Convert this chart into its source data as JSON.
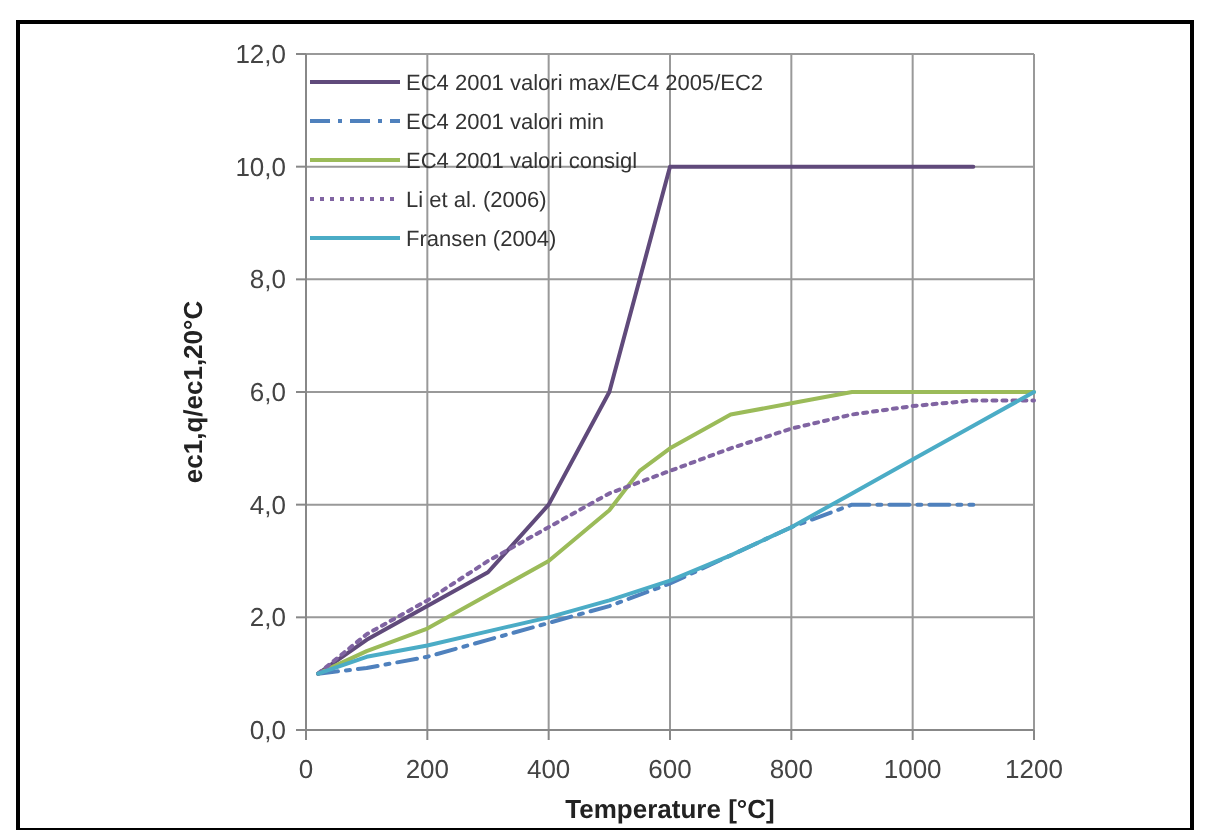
{
  "chart_data": {
    "type": "line",
    "xlabel": "Temperature [°C]",
    "ylabel": "ec1,q/ec1,20°C",
    "xlim": [
      0,
      1200
    ],
    "xticks": [
      0,
      200,
      400,
      600,
      800,
      1000,
      1200
    ],
    "ylim": [
      0,
      12
    ],
    "yticks": [
      {
        "value": 0,
        "label": "0,0"
      },
      {
        "value": 2,
        "label": "2,0"
      },
      {
        "value": 4,
        "label": "4,0"
      },
      {
        "value": 6,
        "label": "6,0"
      },
      {
        "value": 8,
        "label": "8,0"
      },
      {
        "value": 10,
        "label": "10,0"
      },
      {
        "value": 12,
        "label": "12,0"
      }
    ],
    "grid": true,
    "legend": "top left",
    "series": [
      {
        "name": "EC4 2001 valori max/EC4 2005/EC2",
        "color": "#604a7b",
        "line_style": "solid",
        "x": [
          20,
          100,
          200,
          300,
          400,
          500,
          600,
          1100
        ],
        "values": [
          1.0,
          1.6,
          2.2,
          2.8,
          4.0,
          6.0,
          10.0,
          10.0
        ]
      },
      {
        "name": "EC4 2001 valori min",
        "color": "#4f81bd",
        "line_style": "dashdot",
        "x": [
          20,
          100,
          200,
          300,
          400,
          500,
          600,
          700,
          800,
          900,
          1100
        ],
        "values": [
          1.0,
          1.1,
          1.3,
          1.6,
          1.9,
          2.2,
          2.6,
          3.1,
          3.6,
          4.0,
          4.0
        ]
      },
      {
        "name": "EC4 2001 valori consigl",
        "color": "#9bbb59",
        "line_style": "solid",
        "x": [
          20,
          100,
          200,
          300,
          400,
          500,
          550,
          600,
          700,
          800,
          900,
          1200
        ],
        "values": [
          1.0,
          1.4,
          1.8,
          2.4,
          3.0,
          3.9,
          4.6,
          5.0,
          5.6,
          5.8,
          6.0,
          6.0
        ]
      },
      {
        "name": "Li et al. (2006)",
        "color": "#8064a2",
        "line_style": "dotted",
        "x": [
          20,
          100,
          200,
          300,
          400,
          500,
          600,
          700,
          800,
          900,
          1000,
          1100,
          1200
        ],
        "values": [
          1.0,
          1.7,
          2.3,
          3.0,
          3.6,
          4.2,
          4.6,
          5.0,
          5.35,
          5.6,
          5.75,
          5.85,
          5.85
        ]
      },
      {
        "name": "Fransen (2004)",
        "color": "#4bacc6",
        "line_style": "solid",
        "x": [
          20,
          100,
          200,
          300,
          400,
          500,
          600,
          700,
          800,
          900,
          1000,
          1100,
          1200
        ],
        "values": [
          1.0,
          1.3,
          1.5,
          1.75,
          2.0,
          2.3,
          2.65,
          3.1,
          3.6,
          4.2,
          4.8,
          5.4,
          6.0
        ]
      }
    ]
  }
}
